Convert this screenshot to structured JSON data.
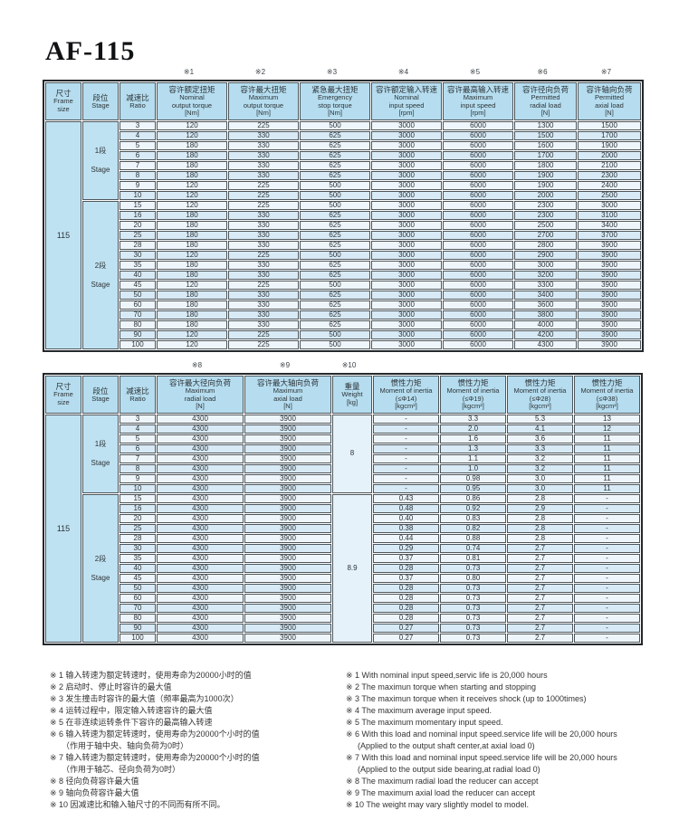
{
  "page": {
    "title": "AF-115"
  },
  "table1": {
    "marks": [
      "※1",
      "※2",
      "※3",
      "※4",
      "※5",
      "※6",
      "※7"
    ],
    "headers": [
      {
        "id": "frame-size",
        "lines": [
          "尺寸",
          "Frame",
          "size"
        ]
      },
      {
        "id": "stage",
        "lines": [
          "段位",
          "Stage"
        ]
      },
      {
        "id": "ratio",
        "lines": [
          "减速比",
          "Ratio"
        ]
      },
      {
        "id": "nominal-output-torque",
        "lines": [
          "容许额定扭矩",
          "Nominal",
          "output torque",
          "[Nm]"
        ]
      },
      {
        "id": "maximum-output-torque",
        "lines": [
          "容许最大扭矩",
          "Maximum",
          "output torque",
          "[Nm]"
        ]
      },
      {
        "id": "emergency-stop-torque",
        "lines": [
          "紧急最大扭矩",
          "Emergency",
          "stop torque",
          "[Nm]"
        ]
      },
      {
        "id": "nominal-input-speed",
        "lines": [
          "容许额定输入转速",
          "Nominal",
          "input speed",
          "[rpm]"
        ]
      },
      {
        "id": "maximum-input-speed",
        "lines": [
          "容许最高输入转速",
          "Maximum",
          "input speed",
          "[rpm]"
        ]
      },
      {
        "id": "permitted-radial-load",
        "lines": [
          "容许径向负荷",
          "Permitted",
          "radial load",
          "[N]"
        ]
      },
      {
        "id": "permitted-axial-load",
        "lines": [
          "容许轴向负荷",
          "Permitted",
          "axial load",
          "[N]"
        ]
      }
    ],
    "frame_size": "115",
    "stages": [
      {
        "label_zh": "1段",
        "label_en": "Stage",
        "row_count": 8
      },
      {
        "label_zh": "2段",
        "label_en": "Stage",
        "row_count": 15
      }
    ],
    "rows": [
      [
        "3",
        "120",
        "225",
        "500",
        "3000",
        "6000",
        "1300",
        "1500"
      ],
      [
        "4",
        "120",
        "330",
        "625",
        "3000",
        "6000",
        "1500",
        "1700"
      ],
      [
        "5",
        "180",
        "330",
        "625",
        "3000",
        "6000",
        "1600",
        "1900"
      ],
      [
        "6",
        "180",
        "330",
        "625",
        "3000",
        "6000",
        "1700",
        "2000"
      ],
      [
        "7",
        "180",
        "330",
        "625",
        "3000",
        "6000",
        "1800",
        "2100"
      ],
      [
        "8",
        "180",
        "330",
        "625",
        "3000",
        "6000",
        "1900",
        "2300"
      ],
      [
        "9",
        "120",
        "225",
        "500",
        "3000",
        "6000",
        "1900",
        "2400"
      ],
      [
        "10",
        "120",
        "225",
        "500",
        "3000",
        "6000",
        "2000",
        "2500"
      ],
      [
        "15",
        "120",
        "225",
        "500",
        "3000",
        "6000",
        "2300",
        "3000"
      ],
      [
        "16",
        "180",
        "330",
        "625",
        "3000",
        "6000",
        "2300",
        "3100"
      ],
      [
        "20",
        "180",
        "330",
        "625",
        "3000",
        "6000",
        "2500",
        "3400"
      ],
      [
        "25",
        "180",
        "330",
        "625",
        "3000",
        "6000",
        "2700",
        "3700"
      ],
      [
        "28",
        "180",
        "330",
        "625",
        "3000",
        "6000",
        "2800",
        "3900"
      ],
      [
        "30",
        "120",
        "225",
        "500",
        "3000",
        "6000",
        "2900",
        "3900"
      ],
      [
        "35",
        "180",
        "330",
        "625",
        "3000",
        "6000",
        "3000",
        "3900"
      ],
      [
        "40",
        "180",
        "330",
        "625",
        "3000",
        "6000",
        "3200",
        "3900"
      ],
      [
        "45",
        "120",
        "225",
        "500",
        "3000",
        "6000",
        "3300",
        "3900"
      ],
      [
        "50",
        "180",
        "330",
        "625",
        "3000",
        "6000",
        "3400",
        "3900"
      ],
      [
        "60",
        "180",
        "330",
        "625",
        "3000",
        "6000",
        "3600",
        "3900"
      ],
      [
        "70",
        "180",
        "330",
        "625",
        "3000",
        "6000",
        "3800",
        "3900"
      ],
      [
        "80",
        "180",
        "330",
        "625",
        "3000",
        "6000",
        "4000",
        "3900"
      ],
      [
        "90",
        "120",
        "225",
        "500",
        "3000",
        "6000",
        "4200",
        "3900"
      ],
      [
        "100",
        "120",
        "225",
        "500",
        "3000",
        "6000",
        "4300",
        "3900"
      ]
    ]
  },
  "table2": {
    "marks": [
      "※8",
      "※9",
      "※10"
    ],
    "headers": [
      {
        "id": "frame-size",
        "lines": [
          "尺寸",
          "Frame",
          "size"
        ]
      },
      {
        "id": "stage",
        "lines": [
          "段位",
          "Stage"
        ]
      },
      {
        "id": "ratio",
        "lines": [
          "减速比",
          "Ratio"
        ]
      },
      {
        "id": "maximum-radial-load",
        "lines": [
          "容许最大径向负荷",
          "Maximum",
          "radial load",
          "[N]"
        ]
      },
      {
        "id": "maximum-axial-load",
        "lines": [
          "容许最大轴向负荷",
          "Maximum",
          "axial load",
          "[N]"
        ]
      },
      {
        "id": "weight",
        "lines": [
          "重量",
          "Weight",
          "[kg]"
        ]
      },
      {
        "id": "moment-of-inertia-14",
        "lines": [
          "惯性力矩",
          "Moment of inertia",
          "(≤Φ14)",
          "[kgcm²]"
        ]
      },
      {
        "id": "moment-of-inertia-19",
        "lines": [
          "惯性力矩",
          "Moment of inertia",
          "(≤Φ19)",
          "[kgcm²]"
        ]
      },
      {
        "id": "moment-of-inertia-28",
        "lines": [
          "惯性力矩",
          "Moment of inertia",
          "(≤Φ28)",
          "[kgcm²]"
        ]
      },
      {
        "id": "moment-of-inertia-38",
        "lines": [
          "惯性力矩",
          "Moment of inertia",
          "(≤Φ38)",
          "[kgcm²]"
        ]
      }
    ],
    "frame_size": "115",
    "stages": [
      {
        "label_zh": "1段",
        "label_en": "Stage",
        "row_count": 8
      },
      {
        "label_zh": "2段",
        "label_en": "Stage",
        "row_count": 15
      }
    ],
    "weights": [
      "8",
      "8.9"
    ],
    "rows": [
      [
        "3",
        "4300",
        "3900",
        "-",
        "3.3",
        "5.3",
        "13"
      ],
      [
        "4",
        "4300",
        "3900",
        "-",
        "2.0",
        "4.1",
        "12"
      ],
      [
        "5",
        "4300",
        "3900",
        "-",
        "1.6",
        "3.6",
        "11"
      ],
      [
        "6",
        "4300",
        "3900",
        "-",
        "1.3",
        "3.3",
        "11"
      ],
      [
        "7",
        "4300",
        "3900",
        "-",
        "1.1",
        "3.2",
        "11"
      ],
      [
        "8",
        "4300",
        "3900",
        "-",
        "1.0",
        "3.2",
        "11"
      ],
      [
        "9",
        "4300",
        "3900",
        "-",
        "0.98",
        "3.0",
        "11"
      ],
      [
        "10",
        "4300",
        "3900",
        "-",
        "0.95",
        "3.0",
        "11"
      ],
      [
        "15",
        "4300",
        "3900",
        "0.43",
        "0.86",
        "2.8",
        "-"
      ],
      [
        "16",
        "4300",
        "3900",
        "0.48",
        "0.92",
        "2.9",
        "-"
      ],
      [
        "20",
        "4300",
        "3900",
        "0.40",
        "0.83",
        "2.8",
        "-"
      ],
      [
        "25",
        "4300",
        "3900",
        "0.38",
        "0.82",
        "2.8",
        "-"
      ],
      [
        "28",
        "4300",
        "3900",
        "0.44",
        "0.88",
        "2.8",
        "-"
      ],
      [
        "30",
        "4300",
        "3900",
        "0.29",
        "0.74",
        "2.7",
        "-"
      ],
      [
        "35",
        "4300",
        "3900",
        "0.37",
        "0.81",
        "2.7",
        "-"
      ],
      [
        "40",
        "4300",
        "3900",
        "0.28",
        "0.73",
        "2.7",
        "-"
      ],
      [
        "45",
        "4300",
        "3900",
        "0.37",
        "0.80",
        "2.7",
        "-"
      ],
      [
        "50",
        "4300",
        "3900",
        "0.28",
        "0.73",
        "2.7",
        "-"
      ],
      [
        "60",
        "4300",
        "3900",
        "0.28",
        "0.73",
        "2.7",
        "-"
      ],
      [
        "70",
        "4300",
        "3900",
        "0.28",
        "0.73",
        "2.7",
        "-"
      ],
      [
        "80",
        "4300",
        "3900",
        "0.28",
        "0.73",
        "2.7",
        "-"
      ],
      [
        "90",
        "4300",
        "3900",
        "0.27",
        "0.73",
        "2.7",
        "-"
      ],
      [
        "100",
        "4300",
        "3900",
        "0.27",
        "0.73",
        "2.7",
        "-"
      ]
    ]
  },
  "notes_zh": [
    "※  1 输入转速为额定转速时，使用寿命为20000小时的值",
    "※  2 启动时、停止时容许的最大值",
    "※  3 发生撞击时容许的最大值（频率最高为1000次）",
    "※  4 运转过程中，限定输入转速容许的最大值",
    "※  5 在非连续运转条件下容许的最高输入转速",
    "※  6 输入转速为额定转速时，使用寿命为20000个小时的值",
    "（作用于轴中央、轴向负荷为0时）",
    "※  7 输入转速为额定转速时，使用寿命为20000个小时的值",
    "（作用于轴芯、径向负荷为0时）",
    "※  8 径向负荷容许最大值",
    "※  9 轴向负荷容许最大值",
    "※ 10 因减速比和输入轴尺寸的不同而有所不同。"
  ],
  "notes_en": [
    "※ 1 With nominal input speed,servic life is 20,000 hours",
    "※ 2 The maximun torque when starting and stopping",
    "※ 3 The maximun torque when it receives shock (up to 1000times)",
    "※ 4 The maximum average input speed.",
    "※ 5 The maximum momentary input speed.",
    "※ 6 With this load and nominal input speed.service life will be 20,000 hours",
    "(Applied to the output shaft center,at axial load 0)",
    "※ 7 With this load and nominal input speed.service life will be 20,000 hours",
    "(Applied to the output side bearing,at radial load 0)",
    "※ 8 The maximum radial load the reducer can accept",
    "※ 9 The maximum axial load the reducer can accept",
    "※ 10 The weight may vary  slightly  model to model."
  ]
}
